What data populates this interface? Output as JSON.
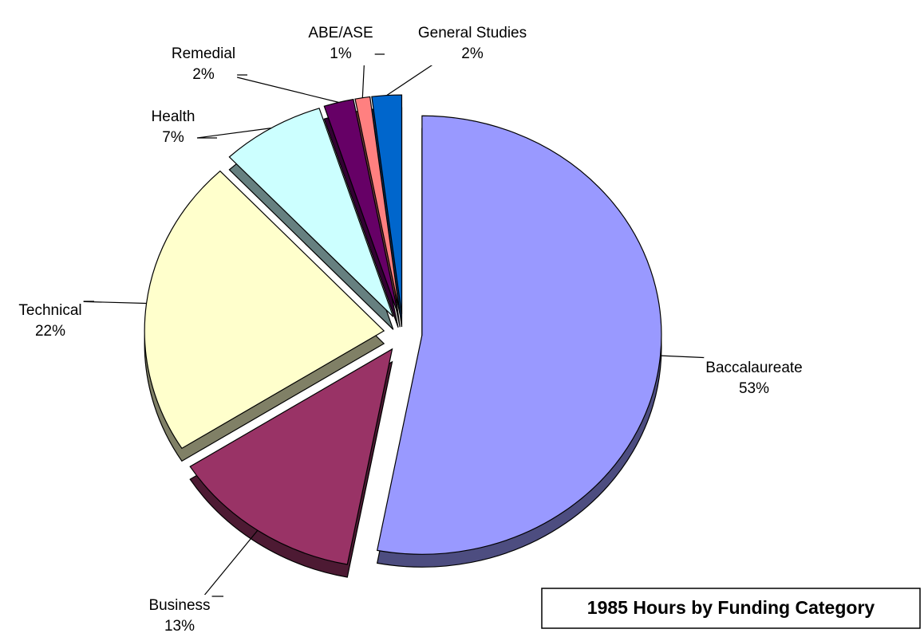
{
  "chart_data": {
    "type": "pie",
    "title": "1985 Hours by Funding Category",
    "categories": [
      "Baccalaureate",
      "Business",
      "Technical",
      "Health",
      "Remedial",
      "ABE/ASE",
      "General Studies"
    ],
    "values": [
      53,
      13,
      22,
      7,
      2,
      1,
      2
    ],
    "value_labels": [
      "53%",
      "13%",
      "22%",
      "7%",
      "2%",
      "1%",
      "2%"
    ],
    "colors": [
      "#9999ff",
      "#993366",
      "#ffffcc",
      "#ccffff",
      "#660066",
      "#ff8080",
      "#0066cc"
    ]
  }
}
